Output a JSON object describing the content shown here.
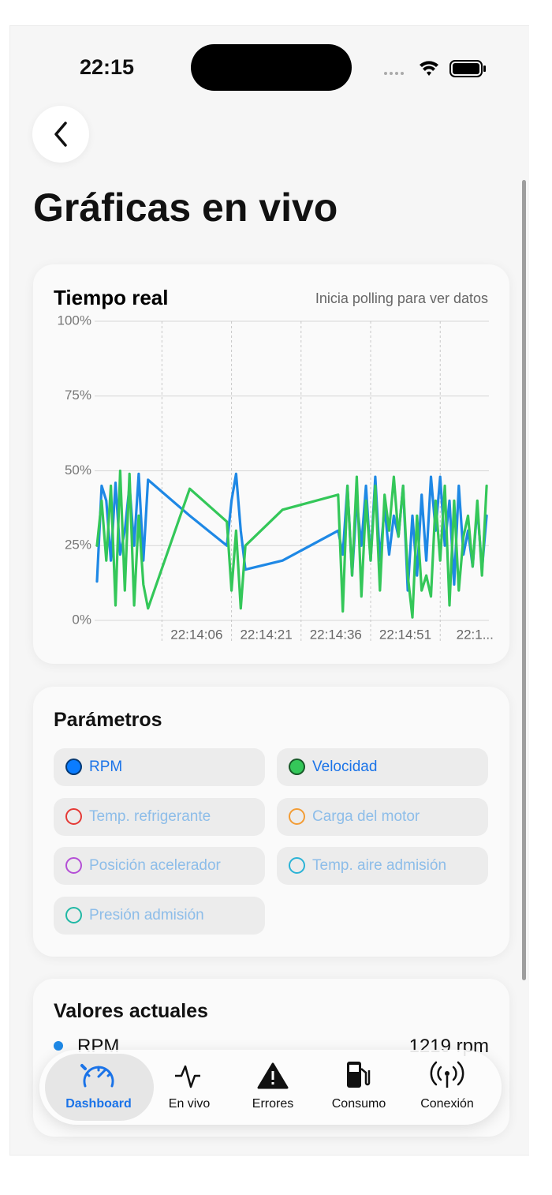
{
  "status_bar": {
    "time": "22:15"
  },
  "header": {
    "title": "Gráficas en vivo"
  },
  "chart_data": {
    "type": "line",
    "title": "Tiempo real",
    "subtitle": "Inicia polling para ver datos",
    "x": [
      -14,
      -13,
      -12,
      -11,
      -10,
      -9,
      -8,
      -7,
      -6,
      -5,
      -4,
      -3,
      6,
      14,
      15,
      16,
      17,
      18,
      26,
      38,
      39,
      40,
      41,
      42,
      43,
      44,
      45,
      46,
      47,
      48,
      49,
      50,
      51,
      52,
      53,
      54,
      55,
      56,
      57,
      58,
      59,
      60,
      61,
      62,
      63,
      64,
      65,
      66,
      67,
      68,
      69,
      70
    ],
    "series": [
      {
        "name": "RPM",
        "color": "#1e88e5",
        "values": [
          13,
          45,
          40,
          20,
          46,
          22,
          30,
          45,
          25,
          49,
          20,
          47,
          35,
          25,
          40,
          49,
          30,
          17,
          20,
          30,
          22,
          45,
          15,
          40,
          25,
          45,
          20,
          48,
          20,
          38,
          22,
          35,
          28,
          45,
          10,
          35,
          15,
          42,
          20,
          48,
          30,
          48,
          25,
          40,
          12,
          45,
          22,
          30,
          18,
          38,
          17,
          35
        ]
      },
      {
        "name": "Velocidad",
        "color": "#34c759",
        "values": [
          25,
          40,
          20,
          45,
          5,
          50,
          10,
          49,
          5,
          35,
          12,
          4,
          44,
          33,
          10,
          30,
          4,
          25,
          37,
          42,
          3,
          45,
          15,
          48,
          8,
          40,
          20,
          45,
          10,
          42,
          30,
          48,
          28,
          45,
          15,
          1,
          35,
          10,
          15,
          8,
          40,
          20,
          45,
          5,
          40,
          10,
          28,
          35,
          18,
          40,
          15,
          45
        ]
      }
    ],
    "xlim": [
      -14,
      70.5
    ],
    "xticks": [
      {
        "value": 0,
        "label": "22:14:06"
      },
      {
        "value": 15,
        "label": "22:14:21"
      },
      {
        "value": 30,
        "label": "22:14:36"
      },
      {
        "value": 45,
        "label": "22:14:51"
      },
      {
        "value": 60,
        "label": "22:1..."
      }
    ],
    "ylim": [
      0,
      100
    ],
    "yticks": [
      {
        "value": 0,
        "label": "0%"
      },
      {
        "value": 25,
        "label": "25%"
      },
      {
        "value": 50,
        "label": "50%"
      },
      {
        "value": 75,
        "label": "75%"
      },
      {
        "value": 100,
        "label": "100%"
      }
    ],
    "grid": true
  },
  "parameters": {
    "title": "Parámetros",
    "items": [
      {
        "label": "RPM",
        "color": "#0a7cff",
        "selected": true
      },
      {
        "label": "Velocidad",
        "color": "#34c759",
        "selected": true
      },
      {
        "label": "Temp. refrigerante",
        "color": "#e53935",
        "selected": false
      },
      {
        "label": "Carga del motor",
        "color": "#f39c34",
        "selected": false
      },
      {
        "label": "Posición acelerador",
        "color": "#b44fd6",
        "selected": false
      },
      {
        "label": "Temp. aire admisión",
        "color": "#2bb3d6",
        "selected": false
      },
      {
        "label": "Presión admisión",
        "color": "#20b8a5",
        "selected": false
      }
    ]
  },
  "current_values": {
    "title": "Valores actuales",
    "rows": [
      {
        "label": "RPM",
        "value": "1219 rpm"
      }
    ]
  },
  "tab_bar": {
    "tabs": [
      "Dashboard",
      "En vivo",
      "Errores",
      "Consumo",
      "Conexión"
    ]
  }
}
